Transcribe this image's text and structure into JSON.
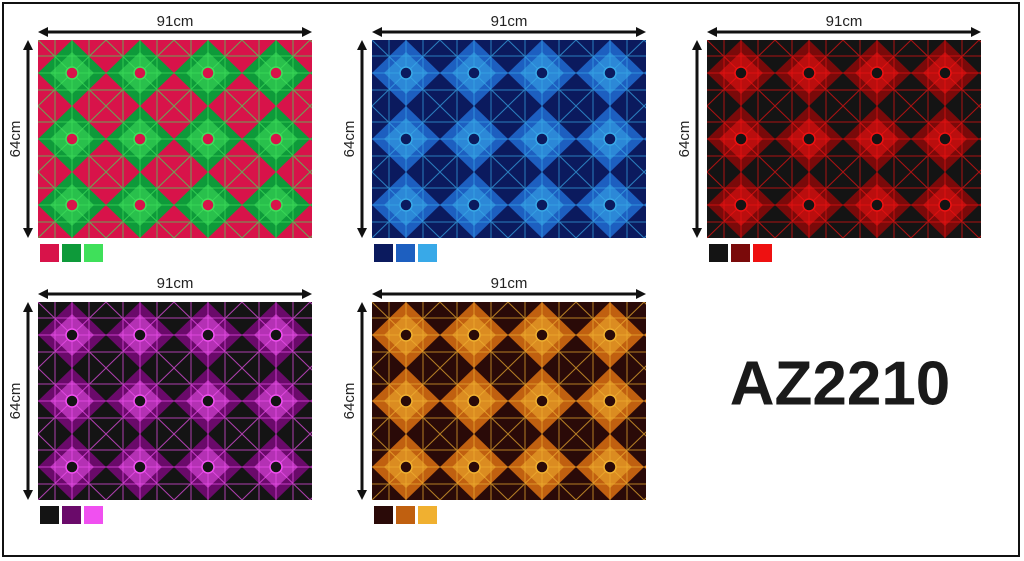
{
  "swatches": [
    {
      "width_label": "91cm",
      "height_label": "64cm",
      "colors": [
        "#d8134a",
        "#0e9a3a",
        "#3fe05a"
      ]
    },
    {
      "width_label": "91cm",
      "height_label": "64cm",
      "colors": [
        "#0b1a5e",
        "#1d5fc0",
        "#38a9e8"
      ]
    },
    {
      "width_label": "91cm",
      "height_label": "64cm",
      "colors": [
        "#141414",
        "#7a0a0a",
        "#ee1111"
      ]
    },
    {
      "width_label": "91cm",
      "height_label": "64cm",
      "colors": [
        "#141414",
        "#6a0a6a",
        "#f050f0"
      ]
    },
    {
      "width_label": "91cm",
      "height_label": "64cm",
      "colors": [
        "#2a0a08",
        "#c06010",
        "#f0b030"
      ]
    }
  ],
  "product_code": "AZ2210"
}
